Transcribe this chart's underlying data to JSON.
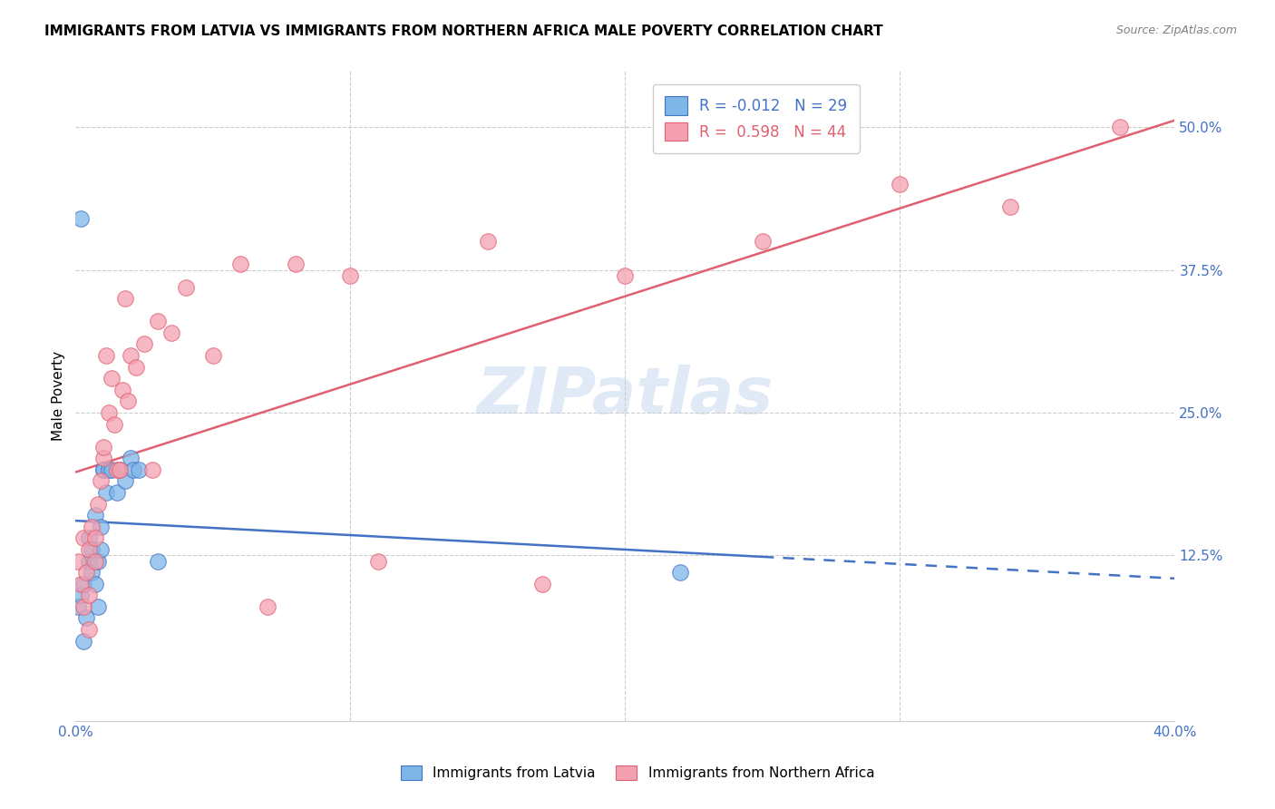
{
  "title": "IMMIGRANTS FROM LATVIA VS IMMIGRANTS FROM NORTHERN AFRICA MALE POVERTY CORRELATION CHART",
  "source": "Source: ZipAtlas.com",
  "ylabel": "Male Poverty",
  "ytick_labels": [
    "12.5%",
    "25.0%",
    "37.5%",
    "50.0%"
  ],
  "ytick_values": [
    0.125,
    0.25,
    0.375,
    0.5
  ],
  "xlim": [
    0.0,
    0.4
  ],
  "ylim": [
    -0.02,
    0.55
  ],
  "legend_label1": "Immigrants from Latvia",
  "legend_label2": "Immigrants from Northern Africa",
  "r1": "-0.012",
  "n1": "29",
  "r2": "0.598",
  "n2": "44",
  "color1": "#7EB6E8",
  "color2": "#F4A0B0",
  "line_color1": "#4472C4",
  "line_color2": "#E06070",
  "watermark": "ZIPatlas",
  "latvia_x": [
    0.001,
    0.002,
    0.003,
    0.003,
    0.004,
    0.005,
    0.005,
    0.006,
    0.006,
    0.007,
    0.007,
    0.008,
    0.008,
    0.009,
    0.009,
    0.01,
    0.01,
    0.011,
    0.012,
    0.013,
    0.015,
    0.016,
    0.018,
    0.02,
    0.021,
    0.023,
    0.03,
    0.22,
    0.002
  ],
  "latvia_y": [
    0.08,
    0.09,
    0.05,
    0.1,
    0.07,
    0.12,
    0.14,
    0.11,
    0.13,
    0.1,
    0.16,
    0.08,
    0.12,
    0.13,
    0.15,
    0.2,
    0.2,
    0.18,
    0.2,
    0.2,
    0.18,
    0.2,
    0.19,
    0.21,
    0.2,
    0.2,
    0.12,
    0.11,
    0.42
  ],
  "n_africa_x": [
    0.001,
    0.002,
    0.003,
    0.003,
    0.004,
    0.005,
    0.005,
    0.006,
    0.007,
    0.007,
    0.008,
    0.009,
    0.01,
    0.01,
    0.011,
    0.012,
    0.013,
    0.014,
    0.015,
    0.016,
    0.017,
    0.018,
    0.019,
    0.02,
    0.022,
    0.025,
    0.028,
    0.03,
    0.035,
    0.04,
    0.05,
    0.06,
    0.08,
    0.1,
    0.15,
    0.2,
    0.25,
    0.3,
    0.34,
    0.38,
    0.17,
    0.11,
    0.07,
    0.005
  ],
  "n_africa_y": [
    0.12,
    0.1,
    0.08,
    0.14,
    0.11,
    0.13,
    0.09,
    0.15,
    0.12,
    0.14,
    0.17,
    0.19,
    0.21,
    0.22,
    0.3,
    0.25,
    0.28,
    0.24,
    0.2,
    0.2,
    0.27,
    0.35,
    0.26,
    0.3,
    0.29,
    0.31,
    0.2,
    0.33,
    0.32,
    0.36,
    0.3,
    0.38,
    0.38,
    0.37,
    0.4,
    0.37,
    0.4,
    0.45,
    0.43,
    0.5,
    0.1,
    0.12,
    0.08,
    0.06
  ]
}
